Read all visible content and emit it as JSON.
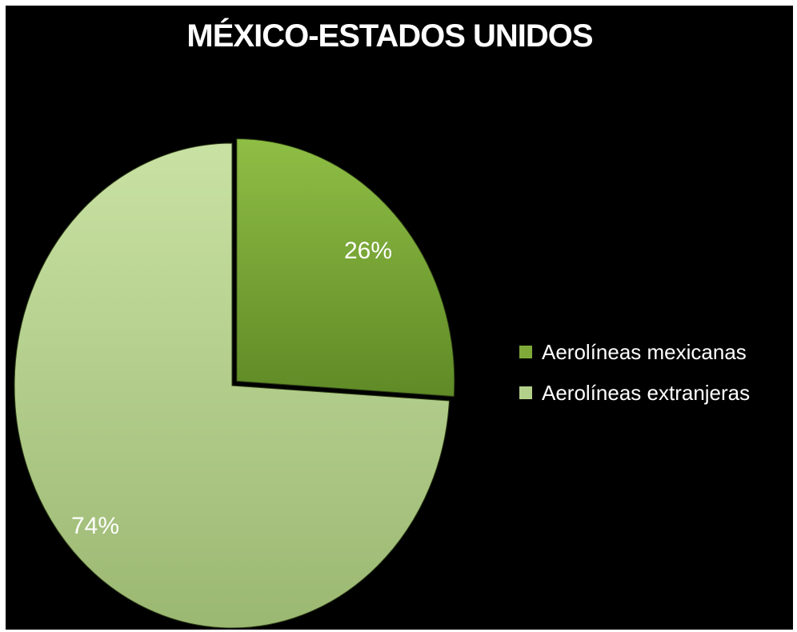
{
  "chart_data": {
    "type": "pie",
    "title": "MÉXICO-ESTADOS UNIDOS",
    "categories": [
      "Aerolíneas mexicanas",
      "Aerolíneas extranjeras"
    ],
    "values": [
      26,
      74
    ],
    "value_labels": [
      "26%",
      "74%"
    ],
    "colors": [
      "#7faa3a",
      "#b3d08a"
    ],
    "legend": {
      "position": "right",
      "entries": [
        "Aerolíneas mexicanas",
        "Aerolíneas extranjeras"
      ]
    },
    "start_angle": "12 o'clock, clockwise"
  }
}
